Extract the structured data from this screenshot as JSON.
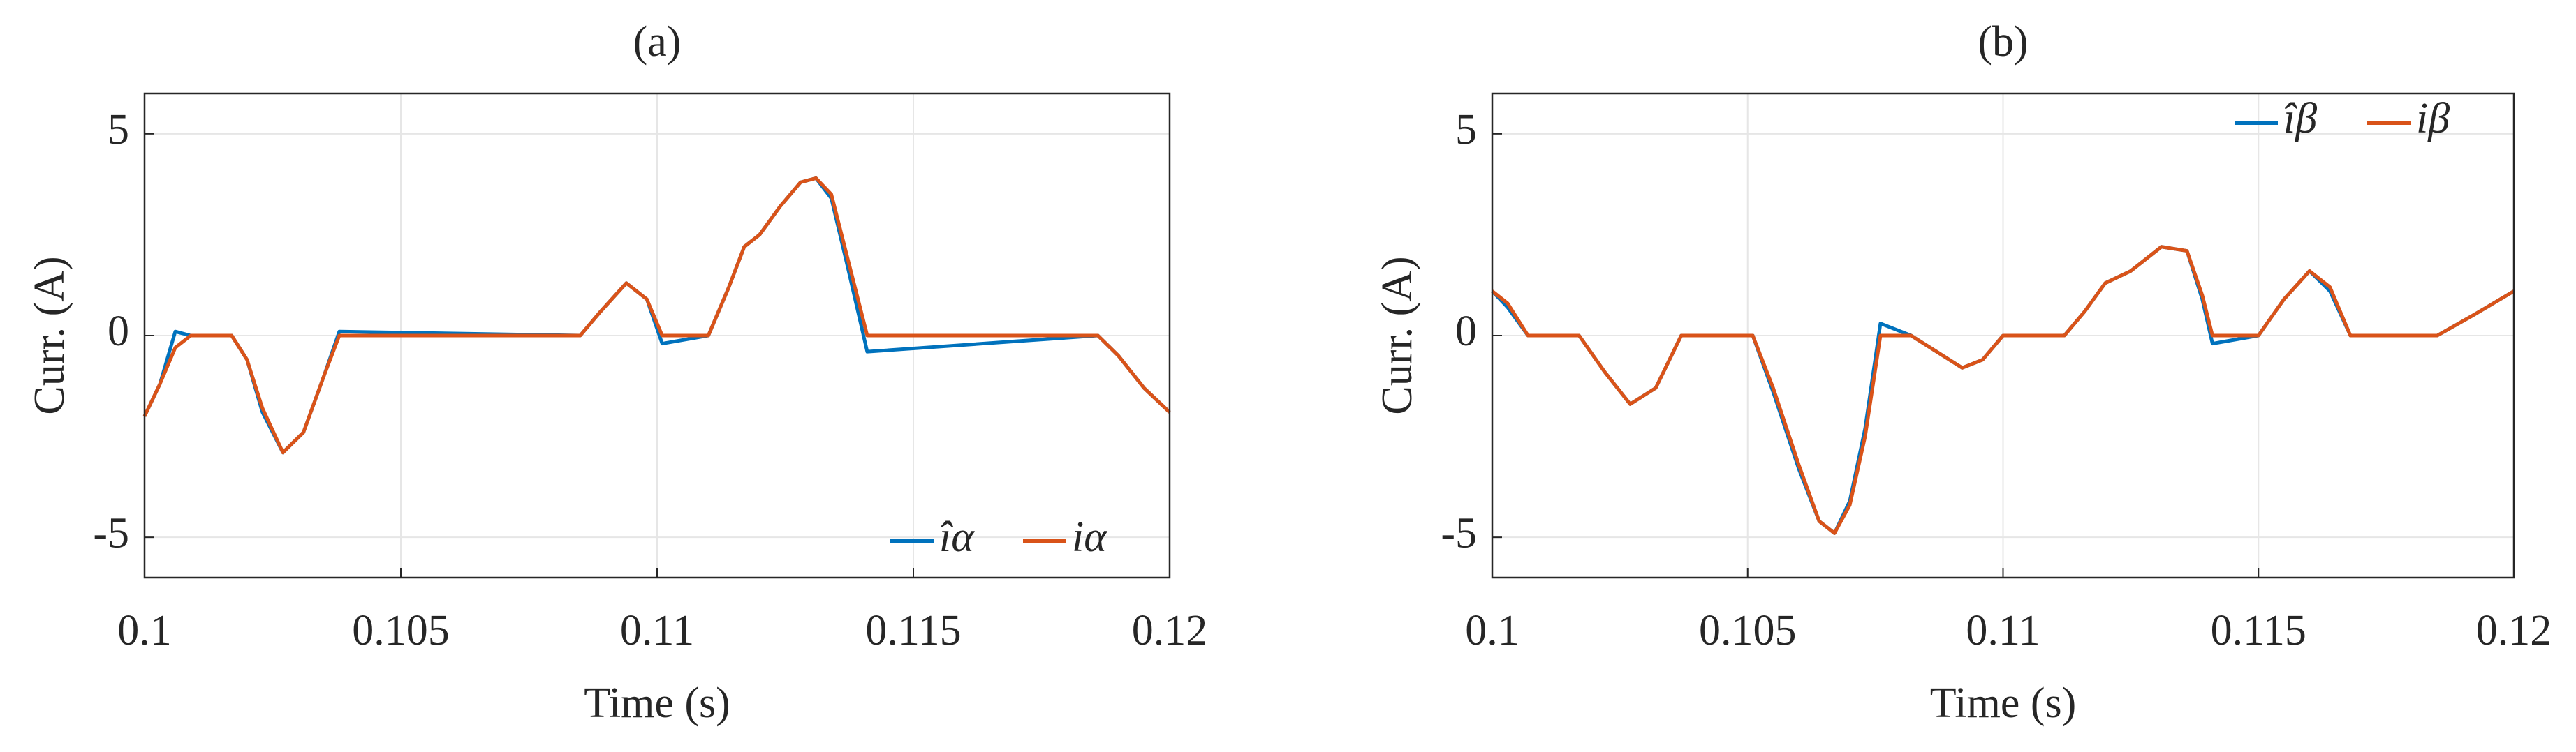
{
  "chart_data": [
    {
      "type": "line",
      "title": "(a)",
      "xlabel": "Time (s)",
      "ylabel": "Curr. (A)",
      "x": [
        0.1,
        0.1003,
        0.1006,
        0.1009,
        0.1017,
        0.102,
        0.1023,
        0.1027,
        0.1031,
        0.1035,
        0.1038,
        0.1085,
        0.1089,
        0.1094,
        0.1098,
        0.1101,
        0.111,
        0.1114,
        0.1117,
        0.112,
        0.1124,
        0.1128,
        0.1131,
        0.1134,
        0.1137,
        0.1141,
        0.1186,
        0.119,
        0.1195,
        0.12
      ],
      "series": [
        {
          "name": "îα",
          "color": "#0072bd",
          "values": [
            -2,
            -1.2,
            0.1,
            0,
            0,
            -0.6,
            -1.9,
            -2.9,
            -2.4,
            -1.0,
            0.1,
            0,
            0.6,
            1.3,
            0.9,
            -0.2,
            0,
            1.2,
            2.2,
            2.5,
            3.2,
            3.8,
            3.9,
            3.4,
            1.8,
            -0.4,
            0,
            -0.5,
            -1.3,
            -1.9
          ]
        },
        {
          "name": "iα",
          "color": "#d95319",
          "values": [
            -2,
            -1.2,
            -0.3,
            0,
            0,
            -0.6,
            -1.8,
            -2.9,
            -2.4,
            -1.0,
            0,
            0,
            0.6,
            1.3,
            0.9,
            0,
            0,
            1.2,
            2.2,
            2.5,
            3.2,
            3.8,
            3.9,
            3.5,
            2.0,
            0,
            0,
            -0.5,
            -1.3,
            -1.9
          ]
        }
      ],
      "xlim": [
        0.1,
        0.12
      ],
      "xticks": [
        0.1,
        0.105,
        0.11,
        0.115,
        0.12
      ],
      "ylim": [
        -6,
        6
      ],
      "yticks": [
        -5,
        0,
        5
      ],
      "grid": true,
      "legend": "lower right"
    },
    {
      "type": "line",
      "title": "(b)",
      "xlabel": "Time (s)",
      "ylabel": "Curr. (A)",
      "x": [
        0.1,
        0.1003,
        0.1007,
        0.1017,
        0.1022,
        0.1027,
        0.1032,
        0.1037,
        0.1051,
        0.1055,
        0.106,
        0.1064,
        0.1067,
        0.107,
        0.1073,
        0.1076,
        0.1082,
        0.1087,
        0.1092,
        0.1096,
        0.11,
        0.1112,
        0.1116,
        0.112,
        0.1125,
        0.1131,
        0.1136,
        0.1139,
        0.1141,
        0.115,
        0.1155,
        0.116,
        0.1164,
        0.1168,
        0.1185,
        0.1192,
        0.12
      ],
      "series": [
        {
          "name": "îβ",
          "color": "#0072bd",
          "values": [
            1.1,
            0.7,
            0,
            0,
            -0.9,
            -1.7,
            -1.3,
            0,
            0,
            -1.4,
            -3.3,
            -4.6,
            -4.9,
            -4.1,
            -2.3,
            0.3,
            0,
            -0.4,
            -0.8,
            -0.6,
            0,
            0,
            0.6,
            1.3,
            1.6,
            2.2,
            2.1,
            0.9,
            -0.2,
            0,
            0.9,
            1.6,
            1.1,
            0,
            0,
            0.5,
            1.1
          ]
        },
        {
          "name": "iβ",
          "color": "#d95319",
          "values": [
            1.1,
            0.8,
            0,
            0,
            -0.9,
            -1.7,
            -1.3,
            0,
            0,
            -1.3,
            -3.2,
            -4.6,
            -4.9,
            -4.2,
            -2.5,
            0,
            0,
            -0.4,
            -0.8,
            -0.6,
            0,
            0,
            0.6,
            1.3,
            1.6,
            2.2,
            2.1,
            1.0,
            0,
            0,
            0.9,
            1.6,
            1.2,
            0,
            0,
            0.5,
            1.1
          ]
        }
      ],
      "xlim": [
        0.1,
        0.12
      ],
      "xticks": [
        0.1,
        0.105,
        0.11,
        0.115,
        0.12
      ],
      "ylim": [
        -6,
        6
      ],
      "yticks": [
        -5,
        0,
        5
      ],
      "grid": true,
      "legend": "upper right"
    }
  ]
}
